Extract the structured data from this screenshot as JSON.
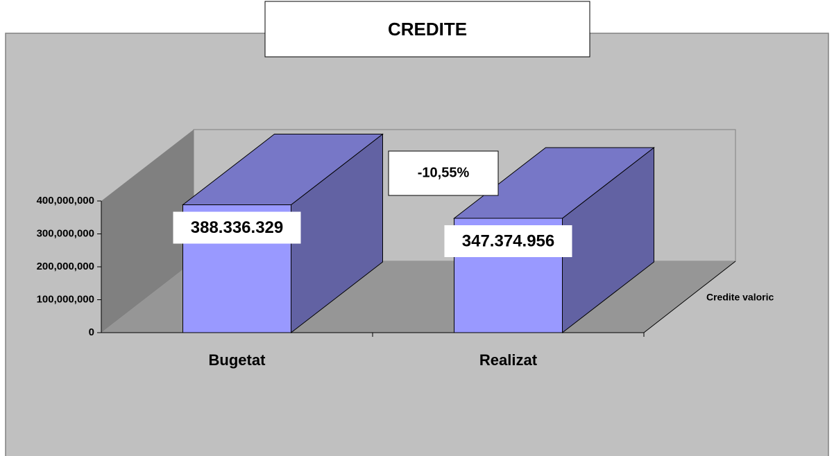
{
  "chart_data": {
    "type": "bar3d",
    "title": "CREDITE",
    "categories": [
      "Bugetat",
      "Realizat"
    ],
    "series": [
      {
        "name": "Credite valoric",
        "color": "#9999ff",
        "values": [
          388336329,
          347374956
        ],
        "value_labels": [
          "388.336.329",
          "347.374.956"
        ]
      }
    ],
    "annotation": "-10,55%",
    "ylim": [
      0,
      400000000
    ],
    "yticks": [
      0,
      {
        "value": 100000000,
        "label": "100,000,000"
      },
      {
        "value": 200000000,
        "label": "200,000,000"
      },
      {
        "value": 300000000,
        "label": "300,000,000"
      },
      {
        "value": 400000000,
        "label": "400,000,000"
      }
    ]
  }
}
